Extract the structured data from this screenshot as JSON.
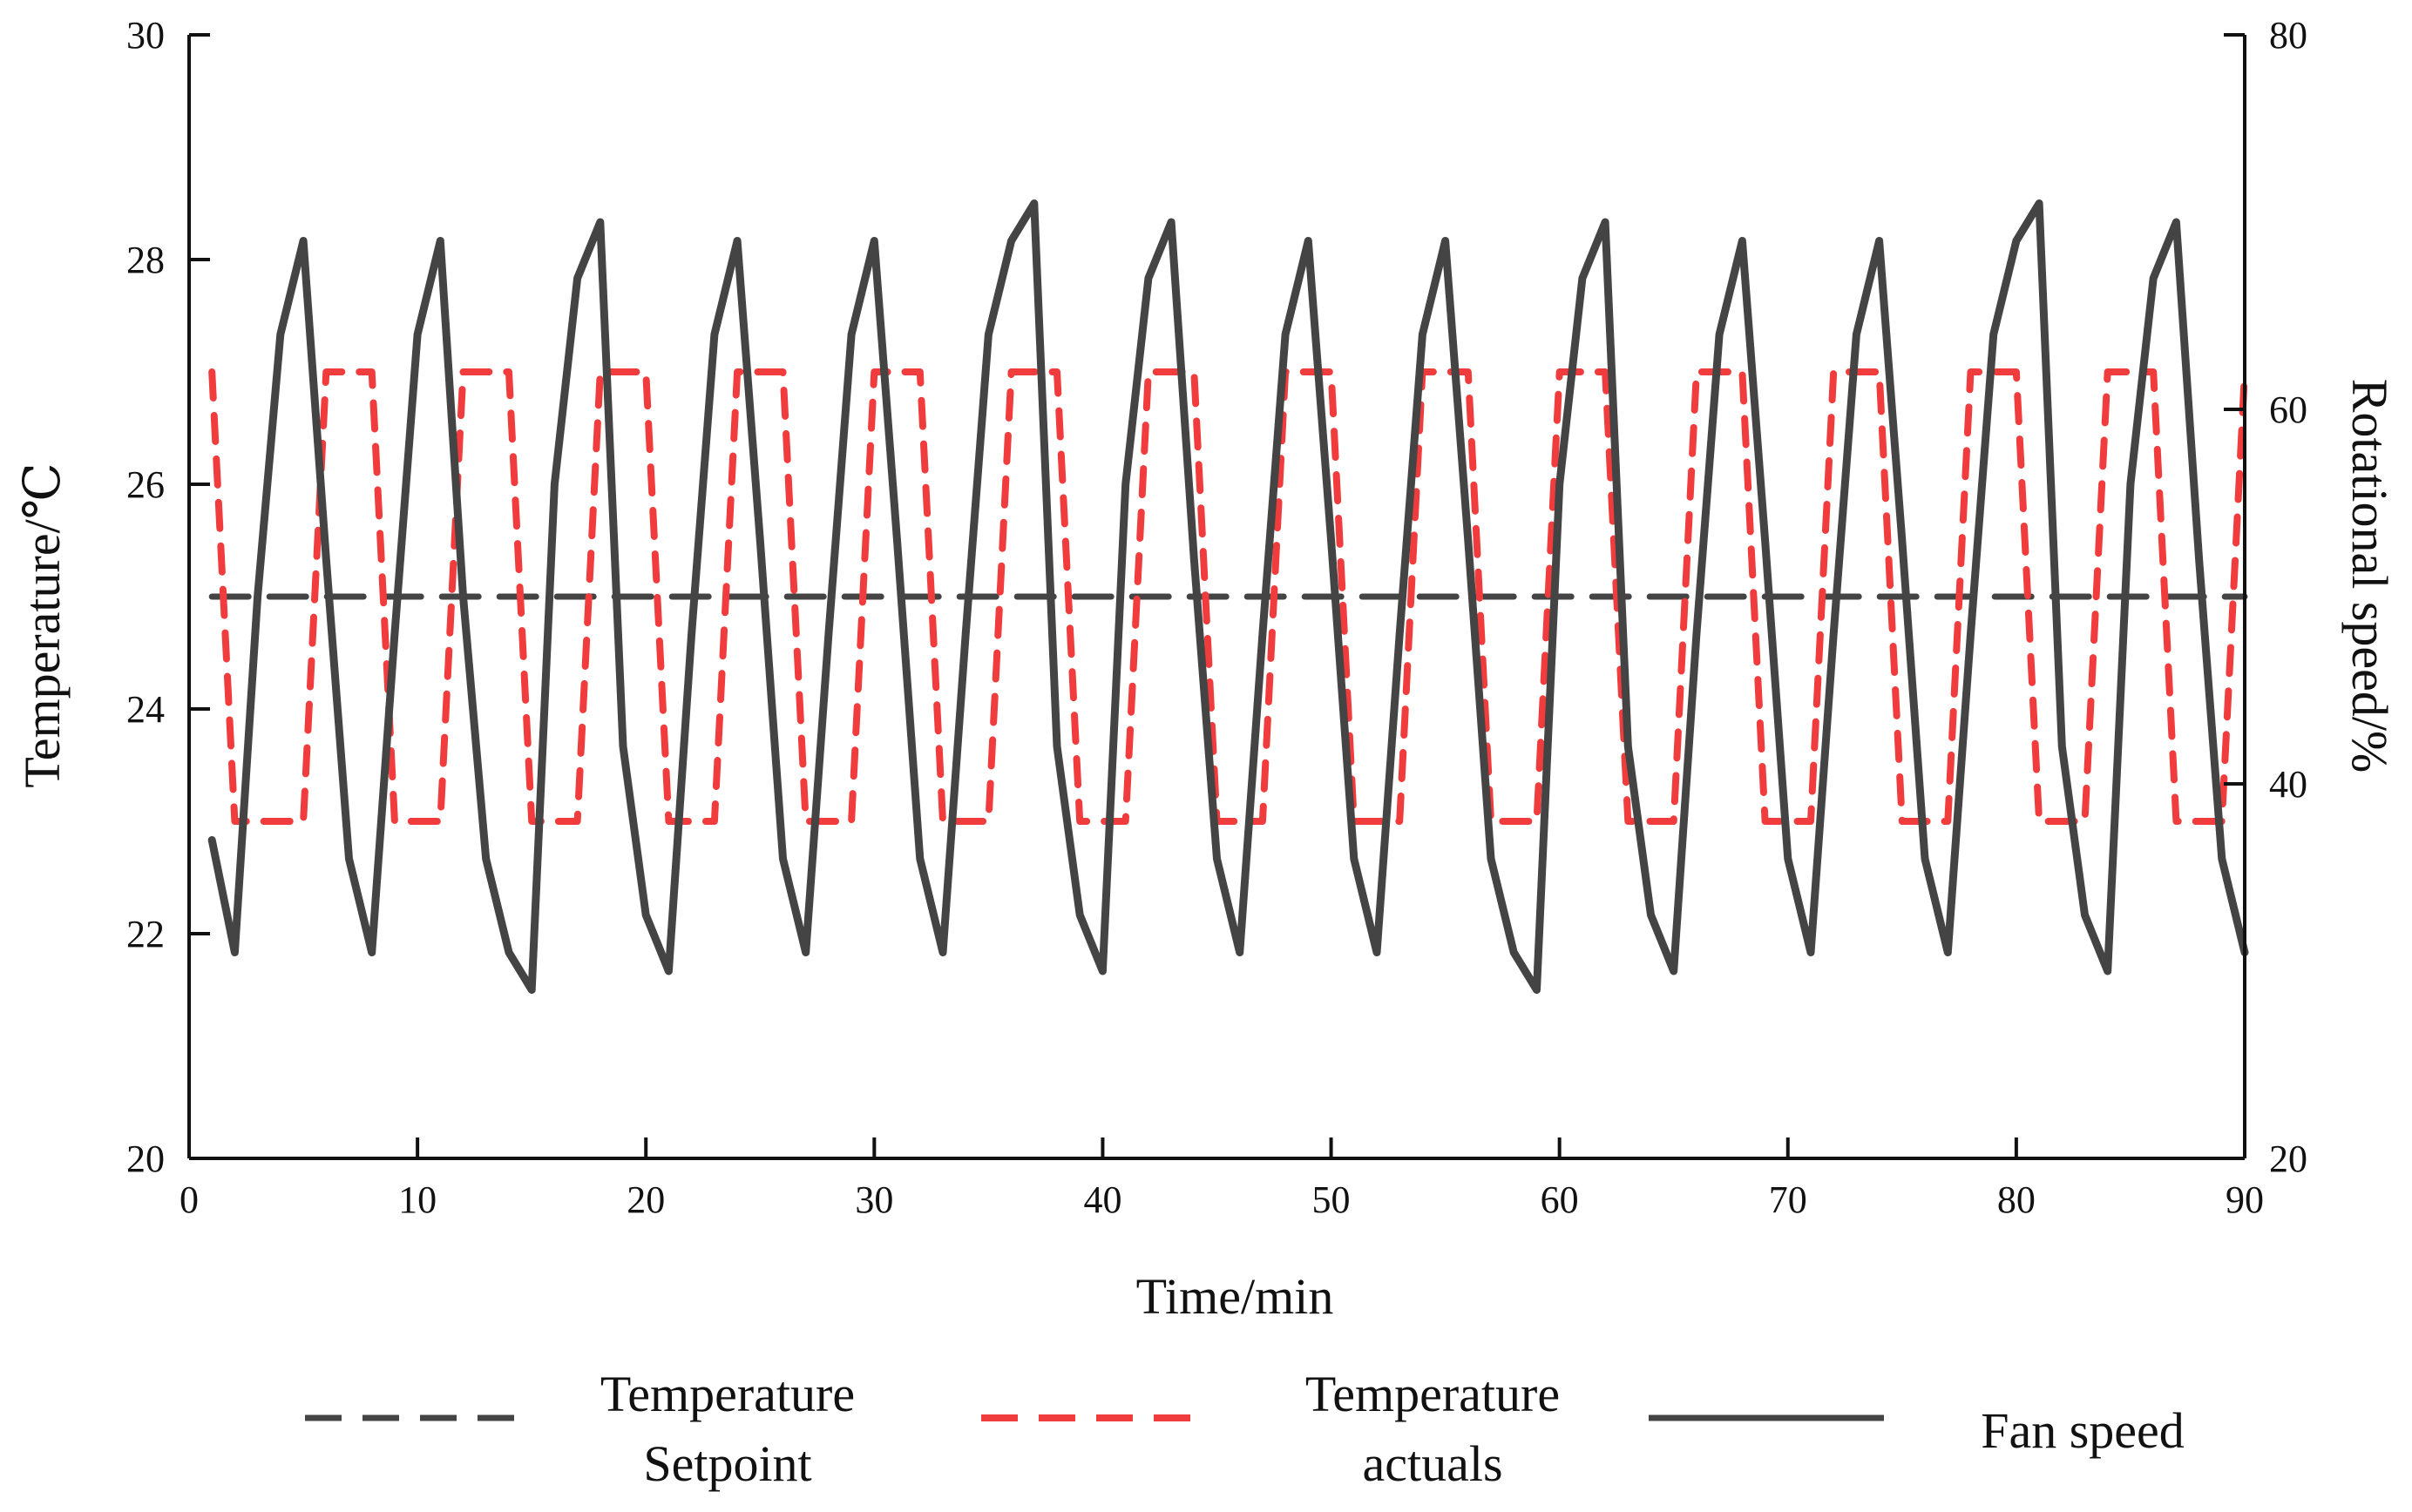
{
  "chart_data": {
    "type": "line",
    "xlabel": "Time/min",
    "ylabel_left": "Temperature/℃",
    "ylabel_right": "Rotational speed/%",
    "xlim": [
      0,
      90
    ],
    "ylim_left": [
      20,
      30
    ],
    "ylim_right": [
      20,
      80
    ],
    "x_ticks": [
      "0",
      "10",
      "20",
      "30",
      "40",
      "50",
      "60",
      "70",
      "80",
      "90"
    ],
    "y_left_ticks": [
      "20",
      "22",
      "24",
      "26",
      "28",
      "30"
    ],
    "y_right_ticks": [
      "20",
      "40",
      "60",
      "80"
    ],
    "x_tick_values": [
      0,
      10,
      20,
      30,
      40,
      50,
      60,
      70,
      80,
      90
    ],
    "y_left_tick_values": [
      20,
      22,
      24,
      26,
      28,
      30
    ],
    "y_right_tick_values": [
      20,
      40,
      60,
      80
    ],
    "grid": false,
    "legend_position": "bottom",
    "colors": {
      "setpoint": "#444444",
      "actuals": "#f03c3c",
      "fan": "#444444",
      "axis": "#111111"
    },
    "series": [
      {
        "name": "Temperature Setpoint",
        "legend_lines": [
          "Temperature",
          "Setpoint"
        ],
        "axis": "left",
        "style": "dashed",
        "x": [
          1,
          90
        ],
        "y": [
          25,
          25
        ]
      },
      {
        "name": "Temperature actuals",
        "legend_lines": [
          "Temperature",
          "actuals"
        ],
        "axis": "left",
        "style": "dashed",
        "x": [
          1,
          2,
          5,
          6,
          8,
          9,
          11,
          12,
          14,
          15,
          17,
          18,
          20,
          21,
          23,
          24,
          26,
          27,
          29,
          30,
          32,
          33,
          35,
          36,
          38,
          39,
          41,
          42,
          44,
          45,
          47,
          48,
          50,
          51,
          53,
          54,
          56,
          57,
          59,
          60,
          62,
          63,
          65,
          66,
          68,
          69,
          71,
          72,
          74,
          75,
          77,
          78,
          80,
          81,
          83,
          84,
          86,
          87,
          89,
          90
        ],
        "y": [
          27,
          23,
          23,
          27,
          27,
          23,
          23,
          27,
          27,
          23,
          23,
          27,
          27,
          23,
          23,
          27,
          27,
          23,
          23,
          27,
          27,
          23,
          23,
          27,
          27,
          23,
          23,
          27,
          27,
          23,
          23,
          27,
          27,
          23,
          23,
          27,
          27,
          23,
          23,
          27,
          27,
          23,
          23,
          27,
          27,
          23,
          23,
          27,
          27,
          23,
          23,
          27,
          27,
          23,
          23,
          27,
          27,
          23,
          23,
          27
        ]
      },
      {
        "name": "Fan speed",
        "legend_lines": [
          "Fan speed"
        ],
        "axis": "right",
        "style": "solid",
        "x": [
          1,
          2,
          3,
          4,
          5,
          6,
          7,
          8,
          9,
          10,
          11,
          12,
          13,
          14,
          15,
          16,
          17,
          18,
          19,
          20,
          21,
          22,
          23,
          24,
          25,
          26,
          27,
          28,
          29,
          30,
          31,
          32,
          33,
          34,
          35,
          36,
          37,
          38,
          39,
          40,
          41,
          42,
          43,
          44,
          45,
          46,
          47,
          48,
          49,
          50,
          51,
          52,
          53,
          54,
          55,
          56,
          57,
          58,
          59,
          60,
          61,
          62,
          63,
          64,
          65,
          66,
          67,
          68,
          69,
          70,
          71,
          72,
          73,
          74,
          75,
          76,
          77,
          78,
          79,
          80,
          81,
          82,
          83,
          84,
          85,
          86,
          87,
          88,
          89,
          90
        ],
        "y": [
          37,
          31,
          50,
          64,
          69,
          52,
          36,
          31,
          48,
          64,
          69,
          50,
          36,
          31,
          29,
          56,
          67,
          70,
          42,
          33,
          30,
          48,
          64,
          69,
          53,
          36,
          31,
          48,
          64,
          69,
          53,
          36,
          31,
          48,
          64,
          69,
          71,
          42,
          33,
          30,
          56,
          67,
          70,
          52,
          36,
          31,
          48,
          64,
          69,
          53,
          36,
          31,
          48,
          64,
          69,
          53,
          36,
          31,
          29,
          56,
          67,
          70,
          42,
          33,
          30,
          48,
          64,
          69,
          53,
          36,
          31,
          48,
          64,
          69,
          53,
          36,
          31,
          48,
          64,
          69,
          71,
          42,
          33,
          30,
          56,
          67,
          70,
          52,
          36,
          31
        ]
      }
    ]
  }
}
